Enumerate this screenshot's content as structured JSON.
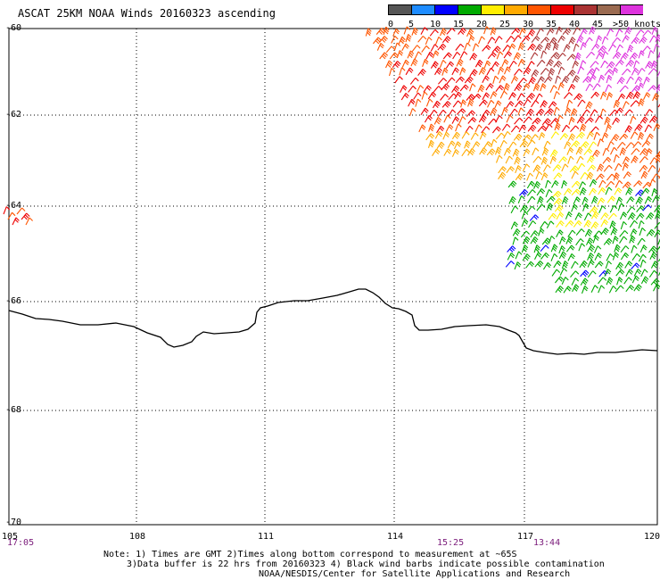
{
  "title": "ASCAT 25KM NOAA Winds 20160323 ascending",
  "colorbar": {
    "colors": [
      "#555555",
      "#1e8cff",
      "#0000ff",
      "#00aa00",
      "#ffee00",
      "#ffaa00",
      "#ff5500",
      "#ee0000",
      "#aa3333",
      "#9a6a50",
      "#dd33dd",
      "#440077"
    ],
    "labels": [
      "0",
      "5",
      "10",
      "15",
      "20",
      "25",
      "30",
      "35",
      "40",
      "45",
      ">50 knots"
    ]
  },
  "map": {
    "latitude_labels": [
      "-60",
      "-62",
      "-64",
      "-66",
      "-68",
      "-70"
    ],
    "longitude_labels": [
      "105",
      "108",
      "111",
      "114",
      "117",
      "120"
    ],
    "pass_times": [
      "17:05",
      "15:25",
      "13:44"
    ],
    "coastline_color": "#000000",
    "gridline_style": "dotted"
  },
  "notes": {
    "line1": "Note: 1) Times are GMT 2)Times along bottom correspond to measurement at ~65S",
    "line2": "3)Data buffer is 22 hrs from 20160323 4) Black wind barbs indicate possible contamination",
    "line3": "NOAA/NESDIS/Center for Satellite Applications and Research"
  }
}
